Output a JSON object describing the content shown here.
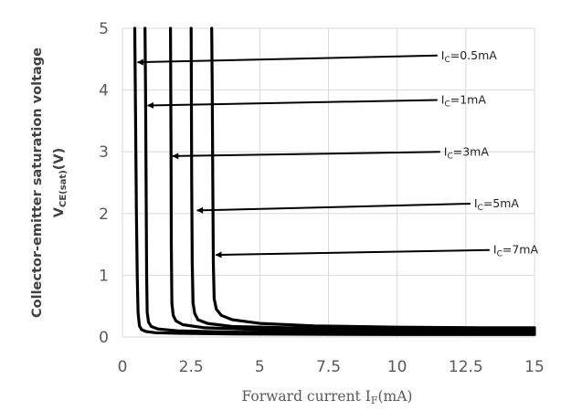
{
  "chart_data": {
    "type": "line",
    "title": "",
    "xlabel": {
      "main": "Forward current I",
      "sub": "F",
      "tail": "(mA)"
    },
    "ylabel": {
      "line1": "Collector-emitter saturation voltage",
      "main": "V",
      "sub": "CE(sat)",
      "tail": "(V)"
    },
    "xlim": [
      0,
      15
    ],
    "ylim": [
      0,
      5
    ],
    "x_ticks": [
      "0",
      "2.5",
      "5",
      "7.5",
      "10",
      "12.5",
      "15"
    ],
    "y_ticks": [
      "0",
      "1",
      "2",
      "3",
      "4",
      "5"
    ],
    "grid": true,
    "series": [
      {
        "name": "IC=0.5mA",
        "x": [
          0.45,
          0.48,
          0.51,
          0.54,
          0.57,
          0.62,
          0.7,
          0.85,
          1.2,
          2,
          4,
          7,
          10,
          13,
          15
        ],
        "y": [
          5,
          3.5,
          2,
          1,
          0.4,
          0.18,
          0.12,
          0.09,
          0.07,
          0.06,
          0.05,
          0.045,
          0.04,
          0.04,
          0.04
        ]
      },
      {
        "name": "IC=1mA",
        "x": [
          0.82,
          0.84,
          0.86,
          0.88,
          0.9,
          0.95,
          1.05,
          1.3,
          2,
          4,
          7,
          10,
          13,
          15
        ],
        "y": [
          5,
          4,
          2.5,
          1,
          0.4,
          0.24,
          0.17,
          0.13,
          0.1,
          0.08,
          0.07,
          0.06,
          0.06,
          0.06
        ]
      },
      {
        "name": "IC=3mA",
        "x": [
          1.75,
          1.76,
          1.77,
          1.78,
          1.8,
          1.85,
          1.95,
          2.2,
          3,
          5,
          8,
          11,
          15
        ],
        "y": [
          5,
          4,
          3,
          1.5,
          0.55,
          0.35,
          0.26,
          0.2,
          0.15,
          0.12,
          0.1,
          0.1,
          0.09
        ]
      },
      {
        "name": "IC=5mA",
        "x": [
          2.5,
          2.51,
          2.52,
          2.54,
          2.57,
          2.63,
          2.75,
          3.1,
          4,
          6,
          9,
          12,
          15
        ],
        "y": [
          5,
          3.8,
          2.5,
          1.2,
          0.55,
          0.38,
          0.28,
          0.22,
          0.17,
          0.15,
          0.13,
          0.12,
          0.12
        ]
      },
      {
        "name": "IC=7mA",
        "x": [
          3.25,
          3.27,
          3.29,
          3.31,
          3.34,
          3.42,
          3.6,
          4,
          5,
          7,
          10,
          13,
          15
        ],
        "y": [
          5,
          4,
          2.5,
          1.2,
          0.62,
          0.45,
          0.35,
          0.28,
          0.22,
          0.18,
          0.16,
          0.15,
          0.15
        ]
      }
    ],
    "annotations": [
      {
        "label_main": "I",
        "label_sub": "C",
        "label_tail": "=0.5mA",
        "text_at": [
          11.6,
          4.5
        ],
        "arrow_to": [
          0.55,
          4.45
        ]
      },
      {
        "label_main": "I",
        "label_sub": "C",
        "label_tail": "=1mA",
        "text_at": [
          11.6,
          3.78
        ],
        "arrow_to": [
          0.92,
          3.75
        ]
      },
      {
        "label_main": "I",
        "label_sub": "C",
        "label_tail": "=3mA",
        "text_at": [
          11.7,
          2.94
        ],
        "arrow_to": [
          1.83,
          2.93
        ]
      },
      {
        "label_main": "I",
        "label_sub": "C",
        "label_tail": "=5mA",
        "text_at": [
          12.8,
          2.1
        ],
        "arrow_to": [
          2.72,
          2.05
        ]
      },
      {
        "label_main": "I",
        "label_sub": "C",
        "label_tail": "=7mA",
        "text_at": [
          13.5,
          1.35
        ],
        "arrow_to": [
          3.4,
          1.33
        ]
      }
    ]
  }
}
